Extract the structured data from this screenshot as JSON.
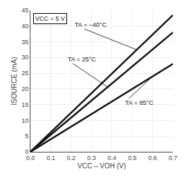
{
  "chart_data": {
    "type": "line",
    "x": [
      0,
      0.7
    ],
    "series": [
      {
        "values": [
          0,
          43.5
        ],
        "color": "#111111"
      },
      {
        "values": [
          0,
          38.0
        ],
        "color": "#111111"
      },
      {
        "values": [
          0,
          28.0
        ],
        "color": "#111111"
      }
    ],
    "annotations": [
      {
        "text": "TA = −40°C",
        "x": 0.52,
        "y": 32.5,
        "text_x": 0.21,
        "text_y": 40.5
      },
      {
        "text": "TA = 25°C",
        "x": 0.38,
        "y": 20.6,
        "text_x": 0.175,
        "text_y": 29.5
      },
      {
        "text": "TA = 85°C",
        "x": 0.6,
        "y": 24.0,
        "text_x": 0.46,
        "text_y": 15.5
      },
      {
        "text": "VCC = 5 V"
      }
    ],
    "xlabel": "VCC – VOH (V)",
    "ylabel": "ISOURCE (mA)",
    "xlim": [
      0.0,
      0.7
    ],
    "ylim": [
      0,
      45
    ],
    "xticks": [
      {
        "value": 0.0,
        "label": "0.0"
      },
      0.1,
      0.2,
      0.3,
      0.4,
      0.5,
      0.6,
      0.7
    ],
    "yticks": [
      0,
      5,
      10,
      15,
      20,
      25,
      30,
      35,
      40,
      45
    ],
    "grid": true
  }
}
